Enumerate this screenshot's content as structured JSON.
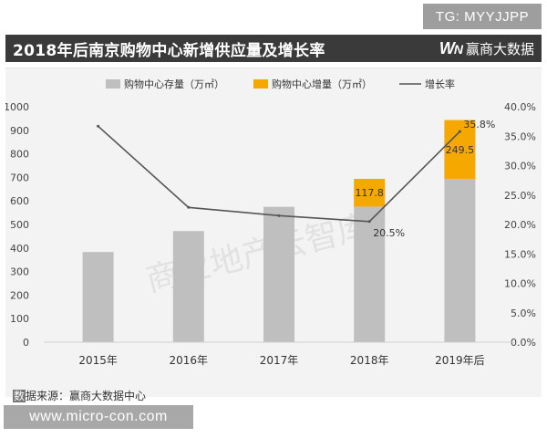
{
  "badge": "TG: MYYJJPP",
  "title": "2018年后南京购物中心新增供应量及增长率",
  "brand": {
    "logo_w": "W",
    "logo_n": "N",
    "name": "赢商大数据"
  },
  "watermark": "商业地产云智库",
  "source": {
    "lead": "数",
    "rest": "据来源：赢商大数据中心"
  },
  "footer_url": "www.micro-con.com",
  "colors": {
    "stock": "#bfbfbf",
    "increment": "#f5a800",
    "growth": "#555555"
  },
  "chart_data": {
    "type": "bar",
    "categories": [
      "2015年",
      "2016年",
      "2017年",
      "2018年",
      "2019年后"
    ],
    "series": [
      {
        "name": "购物中心存量（万㎡）",
        "kind": "bar",
        "values": [
          383,
          472,
          575,
          576,
          694
        ]
      },
      {
        "name": "购物中心增量（万㎡）",
        "kind": "bar-stacked",
        "values": [
          null,
          null,
          null,
          117.8,
          249.5
        ],
        "labels": [
          "",
          "",
          "",
          "117.8",
          "249.5"
        ]
      },
      {
        "name": "增长率",
        "kind": "line",
        "axis": "right",
        "values": [
          36.7,
          22.9,
          21.5,
          20.5,
          35.8
        ],
        "labels": [
          "",
          "",
          "",
          "20.5%",
          "35.8%"
        ]
      }
    ],
    "ylim": [
      0,
      1000
    ],
    "yticks": [
      "0",
      "100",
      "200",
      "300",
      "400",
      "500",
      "600",
      "700",
      "800",
      "900",
      "1000"
    ],
    "y2lim": [
      0,
      40
    ],
    "y2ticks": [
      "0.0%",
      "5.0%",
      "10.0%",
      "15.0%",
      "20.0%",
      "25.0%",
      "30.0%",
      "35.0%",
      "40.0%"
    ],
    "legend": "top",
    "grid": false
  }
}
